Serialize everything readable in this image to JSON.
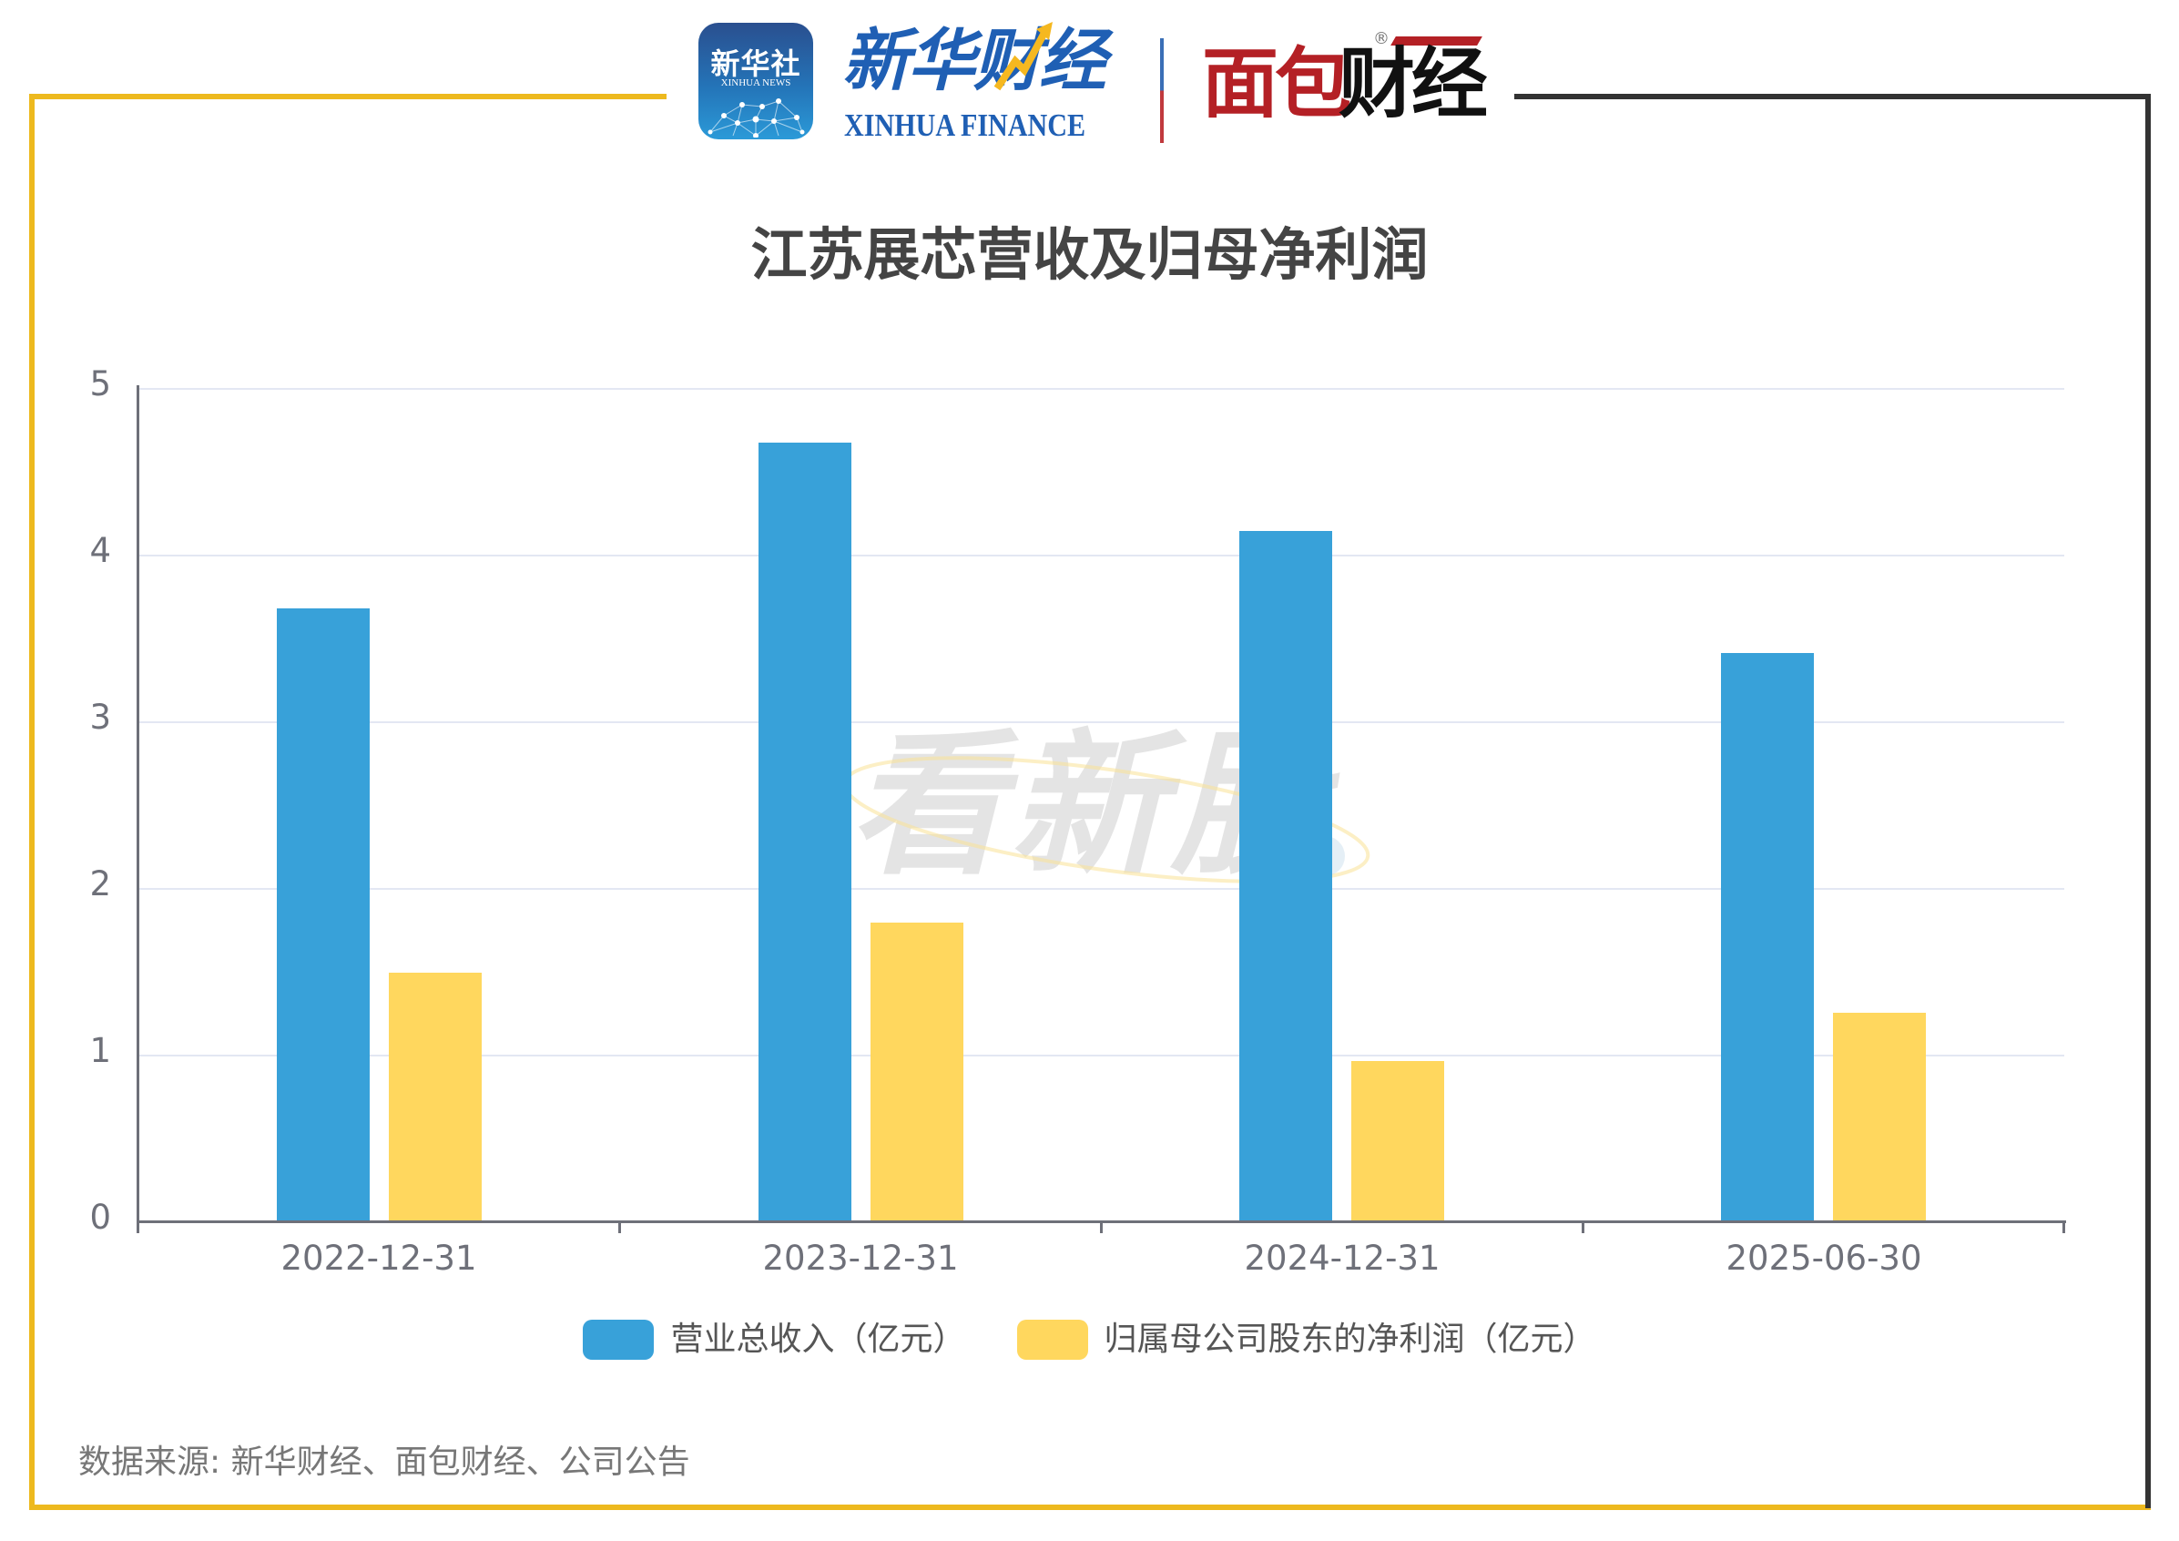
{
  "header": {
    "xinhua_icon_title": "新华社",
    "xinhua_icon_subtitle": "XINHUA NEWS",
    "xinhua_finance_cn": "新华财经",
    "xinhua_finance_en": "XINHUA FINANCE",
    "mianbao_red": "面包",
    "mianbao_black": "财经",
    "registered_mark": "®"
  },
  "watermark": "看新股",
  "colors": {
    "frame_gold": "#EDB91E",
    "frame_dark": "#333333",
    "revenue": "#38A1D9",
    "net_profit": "#FFD75E",
    "axis": "#6E7079",
    "grid": "#E3E7F3"
  },
  "chart_data": {
    "type": "bar",
    "title": "江苏展芯营收及归母净利润",
    "categories": [
      "2022-12-31",
      "2023-12-31",
      "2024-12-31",
      "2025-06-30"
    ],
    "series": [
      {
        "name": "营业总收入（亿元）",
        "color": "#38A1D9",
        "values": [
          3.68,
          4.67,
          4.14,
          3.41
        ]
      },
      {
        "name": "归属母公司股东的净利润（亿元）",
        "color": "#FFD75E",
        "values": [
          1.49,
          1.79,
          0.96,
          1.25
        ]
      }
    ],
    "xlabel": "",
    "ylabel": "",
    "ylim": [
      0,
      5
    ],
    "yticks": [
      "0",
      "1",
      "2",
      "3",
      "4",
      "5"
    ],
    "grid": true,
    "legend_position": "bottom"
  },
  "legend": {
    "items": [
      {
        "label": "营业总收入（亿元）"
      },
      {
        "label": "归属母公司股东的净利润（亿元）"
      }
    ]
  },
  "footer": {
    "source": "数据来源: 新华财经、面包财经、公司公告"
  }
}
